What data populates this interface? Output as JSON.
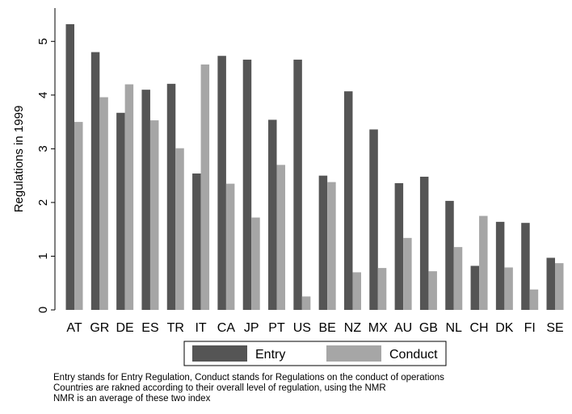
{
  "chart_data": {
    "type": "bar",
    "y_label": "Regulations in 1999",
    "categories": [
      "AT",
      "GR",
      "DE",
      "ES",
      "TR",
      "IT",
      "CA",
      "JP",
      "PT",
      "US",
      "BE",
      "NZ",
      "MX",
      "AU",
      "GB",
      "NL",
      "CH",
      "DK",
      "FI",
      "SE"
    ],
    "series": [
      {
        "name": "Entry",
        "color": "#555555",
        "values": [
          5.32,
          4.8,
          3.67,
          4.1,
          4.21,
          2.54,
          4.73,
          4.66,
          3.54,
          4.66,
          2.5,
          4.07,
          3.36,
          2.36,
          2.48,
          2.03,
          0.82,
          1.64,
          1.62,
          0.97
        ]
      },
      {
        "name": "Conduct",
        "color": "#a6a6a6",
        "values": [
          3.5,
          3.96,
          4.2,
          3.53,
          3.01,
          4.57,
          2.35,
          1.72,
          2.7,
          0.25,
          2.38,
          0.7,
          0.78,
          1.34,
          0.72,
          1.17,
          1.75,
          0.79,
          0.38,
          0.87
        ]
      }
    ],
    "ylim": [
      0,
      5.5
    ],
    "yticks": [
      0,
      1,
      2,
      3,
      4,
      5
    ],
    "grid": false,
    "notes": [
      "Entry stands for Entry Regulation, Conduct stands for Regulations on the conduct of operations",
      "Countries are rakned according to their overall level of regulation, using the NMR",
      "NMR is an average of these two index"
    ]
  }
}
